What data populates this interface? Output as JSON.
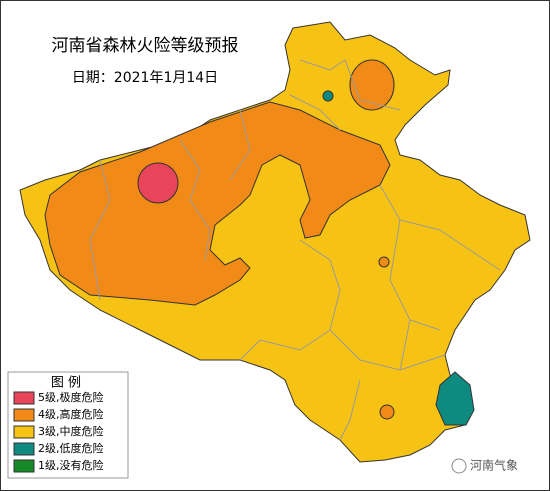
{
  "title": "河南省森林火险等级预报",
  "date": "日期：2021年1月14日",
  "legend": {
    "title": "图  例",
    "items": [
      {
        "label": "5级,极度危险",
        "color": "#e8455a"
      },
      {
        "label": "4级,高度危险",
        "color": "#f28a17"
      },
      {
        "label": "3级,中度危险",
        "color": "#f6c314"
      },
      {
        "label": "2级,低度危险",
        "color": "#0f8a80"
      },
      {
        "label": "1级,没有危险",
        "color": "#168a28"
      }
    ]
  },
  "watermark": "河南气象"
}
